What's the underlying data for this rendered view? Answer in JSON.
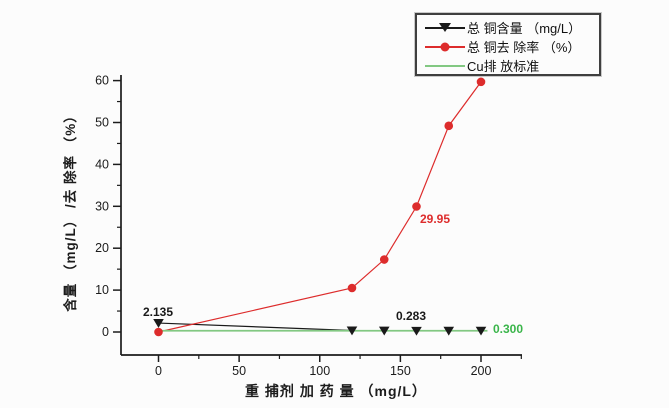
{
  "chart_data": {
    "type": "line",
    "title": "",
    "xlabel": "重 捕剂 加 药 量 （mg/L）",
    "ylabel": "含量 （mg/L） /去 除率 （%）",
    "x": [
      0,
      120,
      140,
      160,
      180,
      200
    ],
    "series": [
      {
        "name": "总 铜含量 （mg/L）",
        "color": "#1a1a1a",
        "marker": "triangle-down",
        "values": [
          2.135,
          0.35,
          0.32,
          0.283,
          0.29,
          0.3
        ]
      },
      {
        "name": "总 铜去 除率 （%）",
        "color": "#dd2c2c",
        "marker": "circle",
        "values": [
          0,
          10.5,
          17.3,
          29.95,
          49.2,
          59.7
        ]
      }
    ],
    "standard_line": {
      "name": "Cu排 放标准",
      "color": "#82c882",
      "value": 0.3,
      "x_start": 0,
      "x_end": 204
    },
    "x_ticks": [
      0,
      50,
      100,
      150,
      200
    ],
    "x_minor_ticks": [
      25,
      75,
      125,
      175,
      225
    ],
    "y_ticks": [
      0,
      10,
      20,
      30,
      40,
      50,
      60
    ],
    "y_minor_ticks": [
      5,
      15,
      25,
      35,
      45,
      55
    ],
    "xlim": [
      -23,
      226
    ],
    "ylim": [
      -5.5,
      61.5
    ],
    "grid": false,
    "legend_position": "top-right",
    "annotations": [
      {
        "text": "2.135",
        "color": "#1a1a1a",
        "x": 0,
        "y": 2.135,
        "refers_to": "total-copper-content-at-0"
      },
      {
        "text": "0.283",
        "color": "#1a1a1a",
        "x": 160,
        "y": 0.283,
        "refers_to": "total-copper-content-at-160"
      },
      {
        "text": "29.95",
        "color": "#dd2c2c",
        "x": 160,
        "y": 29.95,
        "refers_to": "removal-rate-at-160"
      },
      {
        "text": "0.300",
        "color": "#3ab54a",
        "x": 204,
        "y": 0.3,
        "refers_to": "cu-discharge-standard-line"
      }
    ]
  },
  "legend": {
    "items": [
      {
        "label": "总 铜含量 （mg/L）",
        "marker": "triangle-down",
        "color": "#1a1a1a"
      },
      {
        "label": "总 铜去 除率 （%）",
        "marker": "circle",
        "color": "#dd2c2c"
      },
      {
        "label": "Cu排 放标准",
        "marker": "line",
        "color": "#82c882"
      }
    ]
  },
  "colors": {
    "ink": "#1c1c1c",
    "red_series": "#dd2c2c",
    "green_line": "#82c882",
    "green_label": "#3ab54a",
    "background": "#fcfcfc"
  }
}
